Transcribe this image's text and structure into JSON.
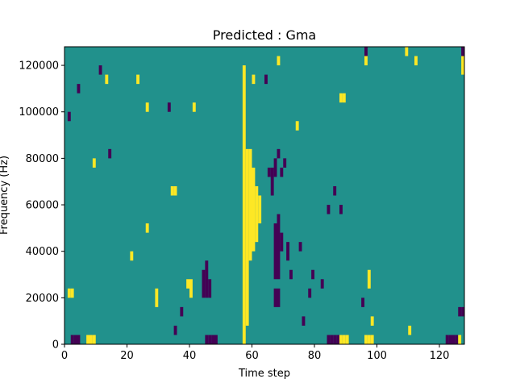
{
  "chart_data": {
    "type": "heatmap",
    "title": "Predicted : Gma",
    "xlabel": "Time step",
    "ylabel": "Frequency (Hz)",
    "xlim": [
      0,
      128
    ],
    "ylim": [
      0,
      128000
    ],
    "x_ticks": [
      0,
      20,
      40,
      60,
      80,
      100,
      120
    ],
    "y_ticks": [
      0,
      20000,
      40000,
      60000,
      80000,
      100000,
      120000
    ],
    "grid": false,
    "legend": "none",
    "colors": {
      "background": "#21918c",
      "low": "#440154",
      "high": "#fde725"
    },
    "n_time_steps": 128,
    "n_freq_bins": 32,
    "bin_height_hz": 4000,
    "cells": [
      {
        "t": 57,
        "f0": 0,
        "f1": 120000,
        "v": "high"
      },
      {
        "t": 58,
        "f0": 8000,
        "f1": 84000,
        "v": "high"
      },
      {
        "t": 59,
        "f0": 36000,
        "f1": 84000,
        "v": "high"
      },
      {
        "t": 60,
        "f0": 40000,
        "f1": 76000,
        "v": "high"
      },
      {
        "t": 61,
        "f0": 44000,
        "f1": 68000,
        "v": "high"
      },
      {
        "t": 62,
        "f0": 52000,
        "f1": 64000,
        "v": "high"
      },
      {
        "t": 2,
        "f0": 0,
        "f1": 4000,
        "v": "low"
      },
      {
        "t": 3,
        "f0": 0,
        "f1": 4000,
        "v": "low"
      },
      {
        "t": 4,
        "f0": 0,
        "f1": 4000,
        "v": "low"
      },
      {
        "t": 7,
        "f0": 0,
        "f1": 4000,
        "v": "high"
      },
      {
        "t": 8,
        "f0": 0,
        "f1": 4000,
        "v": "high"
      },
      {
        "t": 9,
        "f0": 0,
        "f1": 4000,
        "v": "high"
      },
      {
        "t": 45,
        "f0": 0,
        "f1": 4000,
        "v": "low"
      },
      {
        "t": 46,
        "f0": 0,
        "f1": 4000,
        "v": "low"
      },
      {
        "t": 47,
        "f0": 0,
        "f1": 4000,
        "v": "low"
      },
      {
        "t": 48,
        "f0": 0,
        "f1": 4000,
        "v": "low"
      },
      {
        "t": 84,
        "f0": 0,
        "f1": 4000,
        "v": "low"
      },
      {
        "t": 85,
        "f0": 0,
        "f1": 4000,
        "v": "low"
      },
      {
        "t": 86,
        "f0": 0,
        "f1": 4000,
        "v": "low"
      },
      {
        "t": 87,
        "f0": 0,
        "f1": 4000,
        "v": "low"
      },
      {
        "t": 88,
        "f0": 0,
        "f1": 4000,
        "v": "high"
      },
      {
        "t": 89,
        "f0": 0,
        "f1": 4000,
        "v": "high"
      },
      {
        "t": 90,
        "f0": 0,
        "f1": 4000,
        "v": "high"
      },
      {
        "t": 96,
        "f0": 0,
        "f1": 4000,
        "v": "high"
      },
      {
        "t": 97,
        "f0": 0,
        "f1": 4000,
        "v": "high"
      },
      {
        "t": 98,
        "f0": 0,
        "f1": 4000,
        "v": "high"
      },
      {
        "t": 122,
        "f0": 0,
        "f1": 4000,
        "v": "low"
      },
      {
        "t": 123,
        "f0": 0,
        "f1": 4000,
        "v": "low"
      },
      {
        "t": 124,
        "f0": 0,
        "f1": 4000,
        "v": "low"
      },
      {
        "t": 125,
        "f0": 0,
        "f1": 4000,
        "v": "low"
      },
      {
        "t": 126,
        "f0": 0,
        "f1": 4000,
        "v": "high"
      },
      {
        "t": 44,
        "f0": 20000,
        "f1": 32000,
        "v": "low"
      },
      {
        "t": 45,
        "f0": 20000,
        "f1": 36000,
        "v": "low"
      },
      {
        "t": 46,
        "f0": 20000,
        "f1": 28000,
        "v": "low"
      },
      {
        "t": 40,
        "f0": 20000,
        "f1": 28000,
        "v": "high"
      },
      {
        "t": 39,
        "f0": 24000,
        "f1": 28000,
        "v": "high"
      },
      {
        "t": 1,
        "f0": 20000,
        "f1": 24000,
        "v": "high"
      },
      {
        "t": 2,
        "f0": 20000,
        "f1": 24000,
        "v": "high"
      },
      {
        "t": 67,
        "f0": 16000,
        "f1": 24000,
        "v": "low"
      },
      {
        "t": 68,
        "f0": 16000,
        "f1": 24000,
        "v": "low"
      },
      {
        "t": 67,
        "f0": 28000,
        "f1": 52000,
        "v": "low"
      },
      {
        "t": 68,
        "f0": 28000,
        "f1": 56000,
        "v": "low"
      },
      {
        "t": 69,
        "f0": 40000,
        "f1": 48000,
        "v": "low"
      },
      {
        "t": 65,
        "f0": 72000,
        "f1": 76000,
        "v": "low"
      },
      {
        "t": 66,
        "f0": 64000,
        "f1": 76000,
        "v": "low"
      },
      {
        "t": 67,
        "f0": 72000,
        "f1": 80000,
        "v": "low"
      },
      {
        "t": 68,
        "f0": 80000,
        "f1": 84000,
        "v": "low"
      },
      {
        "t": 69,
        "f0": 72000,
        "f1": 76000,
        "v": "low"
      },
      {
        "t": 70,
        "f0": 76000,
        "f1": 80000,
        "v": "low"
      },
      {
        "t": 71,
        "f0": 36000,
        "f1": 44000,
        "v": "low"
      },
      {
        "t": 72,
        "f0": 28000,
        "f1": 32000,
        "v": "low"
      },
      {
        "t": 75,
        "f0": 40000,
        "f1": 44000,
        "v": "low"
      },
      {
        "t": 76,
        "f0": 8000,
        "f1": 12000,
        "v": "low"
      },
      {
        "t": 78,
        "f0": 20000,
        "f1": 24000,
        "v": "low"
      },
      {
        "t": 79,
        "f0": 28000,
        "f1": 32000,
        "v": "low"
      },
      {
        "t": 82,
        "f0": 24000,
        "f1": 28000,
        "v": "low"
      },
      {
        "t": 84,
        "f0": 56000,
        "f1": 60000,
        "v": "low"
      },
      {
        "t": 86,
        "f0": 64000,
        "f1": 68000,
        "v": "low"
      },
      {
        "t": 88,
        "f0": 56000,
        "f1": 60000,
        "v": "low"
      },
      {
        "t": 95,
        "f0": 16000,
        "f1": 20000,
        "v": "low"
      },
      {
        "t": 97,
        "f0": 24000,
        "f1": 32000,
        "v": "high"
      },
      {
        "t": 98,
        "f0": 8000,
        "f1": 12000,
        "v": "high"
      },
      {
        "t": 110,
        "f0": 4000,
        "f1": 8000,
        "v": "high"
      },
      {
        "t": 126,
        "f0": 12000,
        "f1": 16000,
        "v": "low"
      },
      {
        "t": 127,
        "f0": 12000,
        "f1": 16000,
        "v": "low"
      },
      {
        "t": 127,
        "f0": 116000,
        "f1": 124000,
        "v": "high"
      },
      {
        "t": 127,
        "f0": 124000,
        "f1": 128000,
        "v": "low"
      },
      {
        "t": 112,
        "f0": 120000,
        "f1": 124000,
        "v": "high"
      },
      {
        "t": 109,
        "f0": 124000,
        "f1": 128000,
        "v": "high"
      },
      {
        "t": 96,
        "f0": 124000,
        "f1": 128000,
        "v": "low"
      },
      {
        "t": 96,
        "f0": 120000,
        "f1": 124000,
        "v": "high"
      },
      {
        "t": 88,
        "f0": 104000,
        "f1": 108000,
        "v": "high"
      },
      {
        "t": 89,
        "f0": 104000,
        "f1": 108000,
        "v": "high"
      },
      {
        "t": 74,
        "f0": 92000,
        "f1": 96000,
        "v": "high"
      },
      {
        "t": 68,
        "f0": 120000,
        "f1": 124000,
        "v": "high"
      },
      {
        "t": 64,
        "f0": 112000,
        "f1": 116000,
        "v": "low"
      },
      {
        "t": 60,
        "f0": 112000,
        "f1": 116000,
        "v": "high"
      },
      {
        "t": 23,
        "f0": 112000,
        "f1": 116000,
        "v": "high"
      },
      {
        "t": 26,
        "f0": 100000,
        "f1": 104000,
        "v": "high"
      },
      {
        "t": 33,
        "f0": 100000,
        "f1": 104000,
        "v": "low"
      },
      {
        "t": 41,
        "f0": 100000,
        "f1": 104000,
        "v": "high"
      },
      {
        "t": 13,
        "f0": 112000,
        "f1": 116000,
        "v": "high"
      },
      {
        "t": 11,
        "f0": 116000,
        "f1": 120000,
        "v": "low"
      },
      {
        "t": 4,
        "f0": 108000,
        "f1": 112000,
        "v": "low"
      },
      {
        "t": 1,
        "f0": 96000,
        "f1": 100000,
        "v": "low"
      },
      {
        "t": 9,
        "f0": 76000,
        "f1": 80000,
        "v": "high"
      },
      {
        "t": 14,
        "f0": 80000,
        "f1": 84000,
        "v": "low"
      },
      {
        "t": 34,
        "f0": 64000,
        "f1": 68000,
        "v": "high"
      },
      {
        "t": 35,
        "f0": 64000,
        "f1": 68000,
        "v": "high"
      },
      {
        "t": 26,
        "f0": 48000,
        "f1": 52000,
        "v": "high"
      },
      {
        "t": 21,
        "f0": 36000,
        "f1": 40000,
        "v": "high"
      },
      {
        "t": 29,
        "f0": 16000,
        "f1": 24000,
        "v": "high"
      },
      {
        "t": 37,
        "f0": 12000,
        "f1": 16000,
        "v": "low"
      },
      {
        "t": 35,
        "f0": 4000,
        "f1": 8000,
        "v": "low"
      }
    ]
  }
}
